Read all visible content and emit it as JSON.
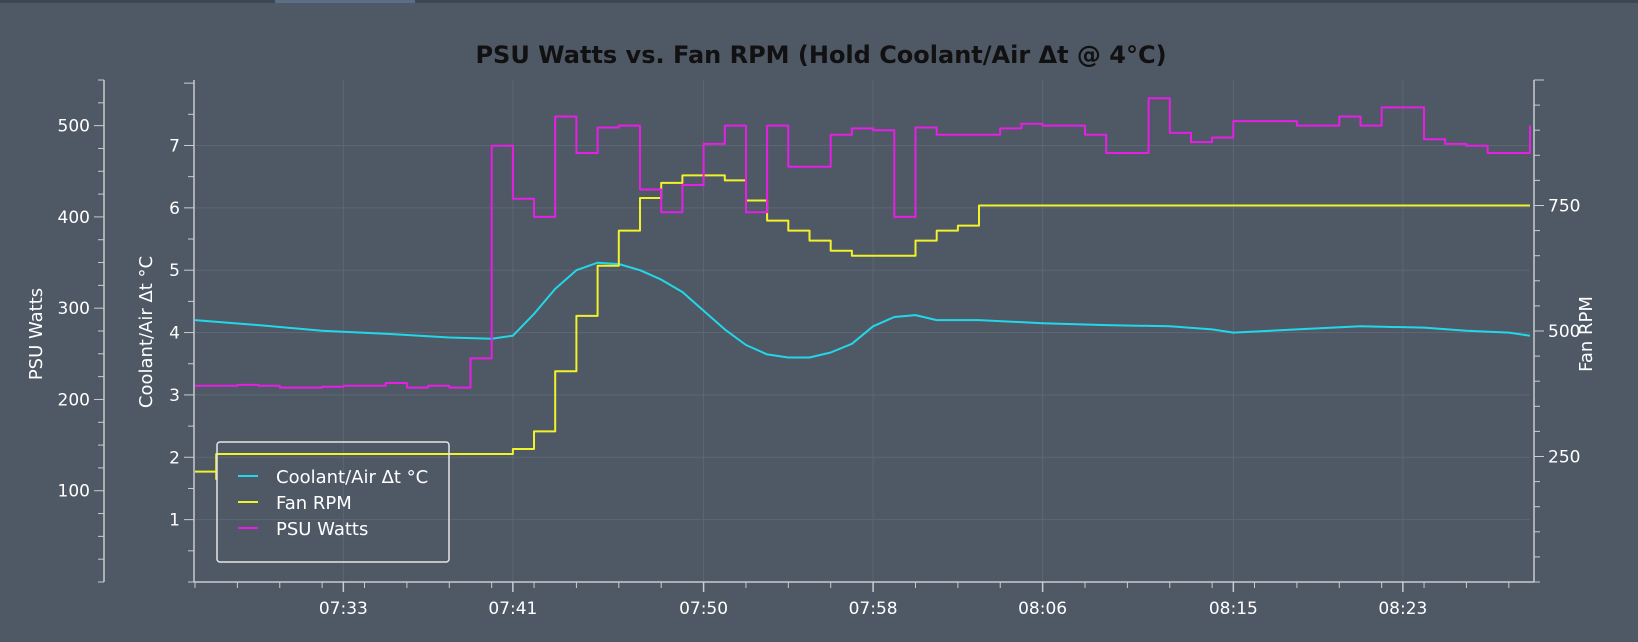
{
  "chart_data": {
    "type": "line",
    "title": "PSU Watts vs. Fan RPM (Hold Coolant/Air Δt @ 4°C)",
    "grid": true,
    "legend": {
      "placement": "bottom-left",
      "entries": [
        "Coolant/Air Δt °C",
        "Fan RPM",
        "PSU Watts"
      ]
    },
    "x_axis": {
      "ticks": [
        "07:33",
        "07:41",
        "07:50",
        "07:58",
        "08:06",
        "08:15",
        "08:23"
      ],
      "range": [
        "07:26",
        "08:29"
      ]
    },
    "axes": {
      "coolant": {
        "label": "Coolant/Air Δt °C",
        "range": [
          0,
          8.05
        ],
        "ticks": [
          1,
          2,
          3,
          4,
          5,
          6,
          7
        ]
      },
      "watts": {
        "label": "PSU Watts",
        "range": [
          0,
          550
        ],
        "ticks": [
          100,
          200,
          300,
          400,
          500
        ]
      },
      "rpm": {
        "label": "Fan RPM",
        "range": [
          0,
          1000
        ],
        "ticks": [
          250,
          500,
          750
        ]
      }
    },
    "series": [
      {
        "name": "Coolant/Air Δt °C",
        "axis": "coolant",
        "color": "#22d8e8",
        "x": [
          "07:26",
          "07:29",
          "07:32",
          "07:35",
          "07:38",
          "07:40",
          "07:41",
          "07:42",
          "07:43",
          "07:44",
          "07:45",
          "07:46",
          "07:47",
          "07:48",
          "07:49",
          "07:50",
          "07:51",
          "07:52",
          "07:53",
          "07:54",
          "07:55",
          "07:56",
          "07:57",
          "07:58",
          "07:59",
          "08:00",
          "08:01",
          "08:03",
          "08:06",
          "08:09",
          "08:12",
          "08:14",
          "08:15",
          "08:18",
          "08:21",
          "08:24",
          "08:26",
          "08:28",
          "08:29"
        ],
        "values": [
          4.2,
          4.12,
          4.03,
          3.98,
          3.92,
          3.9,
          3.95,
          4.3,
          4.7,
          5.0,
          5.12,
          5.1,
          5.0,
          4.85,
          4.65,
          4.35,
          4.05,
          3.8,
          3.65,
          3.6,
          3.6,
          3.68,
          3.82,
          4.1,
          4.25,
          4.28,
          4.2,
          4.2,
          4.15,
          4.12,
          4.1,
          4.05,
          4.0,
          4.05,
          4.1,
          4.08,
          4.03,
          4.0,
          3.95
        ]
      },
      {
        "name": "Fan RPM",
        "axis": "rpm",
        "color": "#f2f22a",
        "x": [
          "07:26",
          "07:27",
          "07:27",
          "07:40",
          "07:41",
          "07:42",
          "07:43",
          "07:44",
          "07:45",
          "07:46",
          "07:47",
          "07:48",
          "07:49",
          "07:50",
          "07:51",
          "07:52",
          "07:53",
          "07:54",
          "07:55",
          "07:56",
          "07:57",
          "07:58",
          "07:59",
          "08:00",
          "08:01",
          "08:02",
          "08:03",
          "08:08",
          "08:17",
          "08:29"
        ],
        "values": [
          220,
          205,
          255,
          255,
          265,
          300,
          420,
          530,
          630,
          700,
          765,
          795,
          810,
          810,
          800,
          760,
          720,
          700,
          680,
          660,
          650,
          650,
          650,
          680,
          700,
          710,
          750,
          750,
          750,
          750
        ]
      },
      {
        "name": "PSU Watts",
        "axis": "watts",
        "color": "#e61ee6",
        "x": [
          "07:26",
          "07:28",
          "07:29",
          "07:30",
          "07:32",
          "07:33",
          "07:35",
          "07:36",
          "07:37",
          "07:38",
          "07:39",
          "07:39",
          "07:40",
          "07:40",
          "07:41",
          "07:42",
          "07:43",
          "07:44",
          "07:45",
          "07:46",
          "07:47",
          "07:47",
          "07:48",
          "07:49",
          "07:50",
          "07:51",
          "07:52",
          "07:53",
          "07:54",
          "07:55",
          "07:56",
          "07:57",
          "07:58",
          "07:59",
          "07:59",
          "08:00",
          "08:01",
          "08:02",
          "08:03",
          "08:04",
          "08:05",
          "08:06",
          "08:08",
          "08:09",
          "08:10",
          "08:11",
          "08:12",
          "08:13",
          "08:14",
          "08:15",
          "08:16",
          "08:18",
          "08:19",
          "08:20",
          "08:21",
          "08:22",
          "08:23",
          "08:24",
          "08:25",
          "08:26",
          "08:27",
          "08:28",
          "08:29"
        ],
        "values": [
          215,
          216,
          215,
          213,
          214,
          215,
          218,
          213,
          215,
          213,
          222,
          245,
          248,
          478,
          420,
          400,
          510,
          470,
          498,
          500,
          475,
          430,
          405,
          435,
          480,
          500,
          405,
          500,
          455,
          455,
          490,
          497,
          495,
          495,
          400,
          498,
          490,
          490,
          490,
          497,
          502,
          500,
          490,
          470,
          470,
          530,
          492,
          482,
          487,
          505,
          505,
          500,
          500,
          510,
          500,
          520,
          520,
          485,
          480,
          478,
          470,
          470,
          500
        ]
      }
    ]
  }
}
